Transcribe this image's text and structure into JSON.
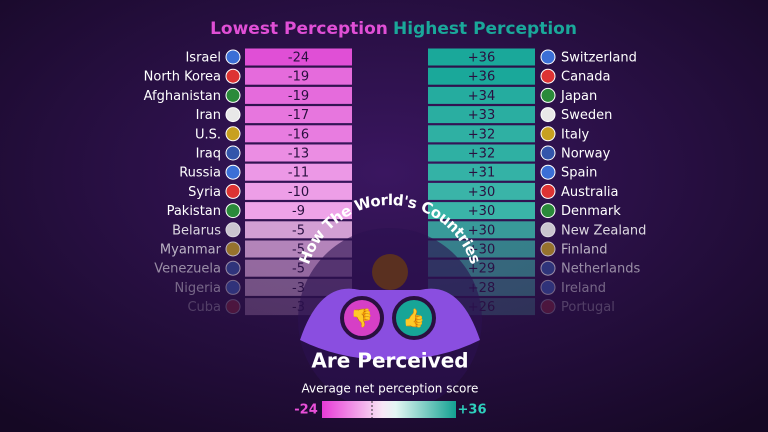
{
  "arc_title": "How The World's Countries",
  "title": "Are Perceived",
  "subtitle": "Average net perception score",
  "colorscale": {
    "min": -24,
    "max": {
      "value": 36,
      "label": "+36"
    }
  },
  "chart_data": [
    {
      "type": "bar",
      "orientation": "horizontal",
      "title": "Lowest Perception",
      "color": "#e04fd6",
      "categories": [
        "Israel",
        "North Korea",
        "Afghanistan",
        "Iran",
        "U.S.",
        "Iraq",
        "Russia",
        "Syria",
        "Pakistan",
        "Belarus",
        "Myanmar",
        "Venezuela",
        "Nigeria",
        "Cuba"
      ],
      "values": [
        -24,
        -19,
        -19,
        -17,
        -16,
        -13,
        -11,
        -10,
        -9,
        -5,
        -5,
        -5,
        -3,
        -3
      ]
    },
    {
      "type": "bar",
      "orientation": "horizontal",
      "title": "Highest Perception",
      "color": "#1aa89a",
      "categories": [
        "Switzerland",
        "Canada",
        "Japan",
        "Sweden",
        "Italy",
        "Norway",
        "Spain",
        "Australia",
        "Denmark",
        "New Zealand",
        "Finland",
        "Netherlands",
        "Ireland",
        "Portugal"
      ],
      "values": [
        36,
        36,
        34,
        33,
        32,
        32,
        31,
        30,
        30,
        30,
        30,
        29,
        28,
        26
      ],
      "value_labels": [
        "+36",
        "+36",
        "+34",
        "+33",
        "+32",
        "+32",
        "+31",
        "+30",
        "+30",
        "+30",
        "+30",
        "+29",
        "+28",
        "+26"
      ]
    }
  ]
}
